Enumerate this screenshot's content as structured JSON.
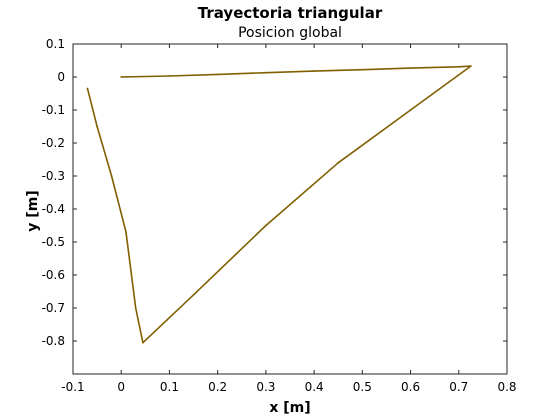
{
  "chart_data": {
    "type": "line",
    "title": "Trayectoria triangular",
    "subtitle": "Posicion global",
    "xlabel": "x [m]",
    "ylabel": "y [m]",
    "xlim": [
      -0.1,
      0.8
    ],
    "ylim": [
      -0.9,
      0.1
    ],
    "xticks": [
      -0.1,
      0,
      0.1,
      0.2,
      0.3,
      0.4,
      0.5,
      0.6,
      0.7,
      0.8
    ],
    "xtick_labels": [
      "-0.1",
      "0",
      "0.1",
      "0.2",
      "0.3",
      "0.4",
      "0.5",
      "0.6",
      "0.7",
      "0.8"
    ],
    "yticks": [
      0.1,
      0,
      -0.1,
      -0.2,
      -0.3,
      -0.4,
      -0.5,
      -0.6,
      -0.7,
      -0.8
    ],
    "ytick_labels": [
      "0.1",
      "0",
      "-0.1",
      "-0.2",
      "-0.3",
      "-0.4",
      "-0.5",
      "-0.6",
      "-0.7",
      "-0.8"
    ],
    "grid": false,
    "series": [
      {
        "color": "#7f5f00",
        "x": [
          0.0,
          0.1,
          0.2,
          0.3,
          0.4,
          0.5,
          0.6,
          0.7,
          0.725,
          0.6,
          0.45,
          0.3,
          0.15,
          0.045,
          0.03,
          0.01,
          -0.02,
          -0.05,
          -0.07
        ],
        "y": [
          0.0,
          0.003,
          0.008,
          0.013,
          0.018,
          0.022,
          0.027,
          0.031,
          0.033,
          -0.1,
          -0.26,
          -0.45,
          -0.66,
          -0.805,
          -0.7,
          -0.47,
          -0.3,
          -0.15,
          -0.035
        ]
      }
    ]
  }
}
